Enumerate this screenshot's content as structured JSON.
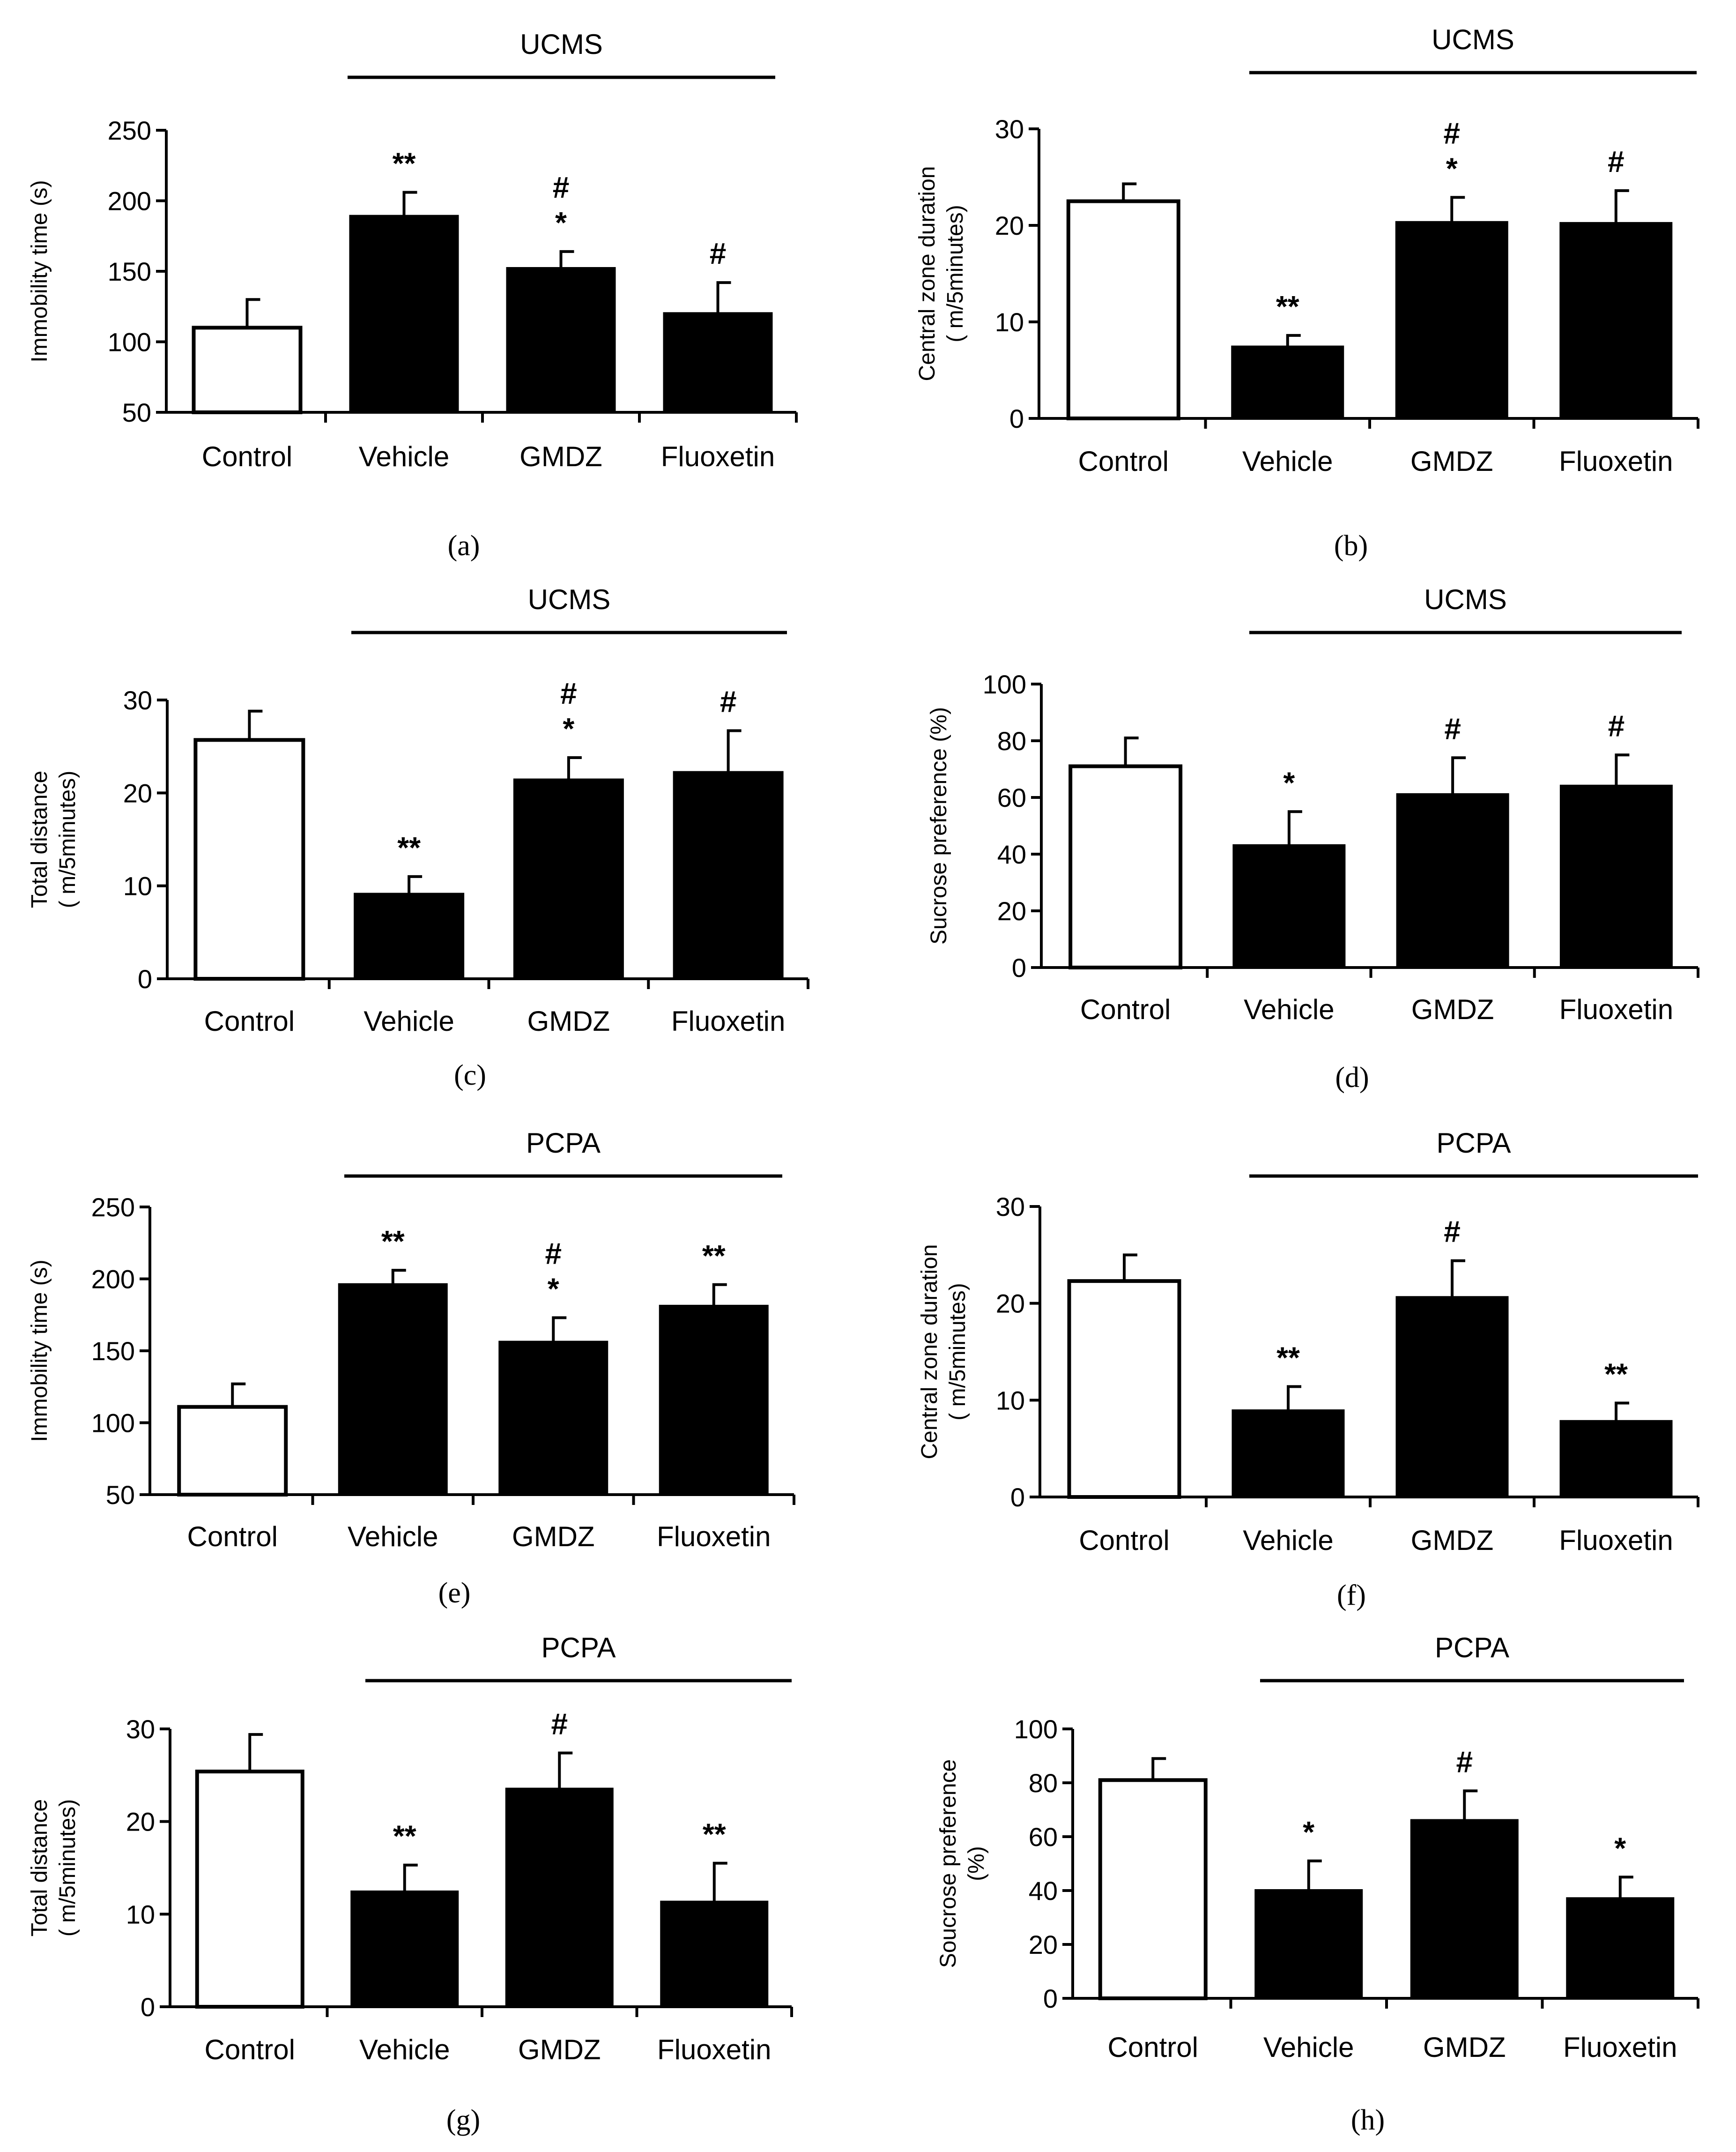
{
  "colors": {
    "treated_bar": "#000000",
    "control_bar": "#ffffff"
  },
  "chart_data": [
    {
      "panel": "(a)",
      "type": "bar",
      "group_label": "UCMS",
      "categories": [
        "Control",
        "Vehicle",
        "GMDZ",
        "Fluoxetin"
      ],
      "ylabel_lines": [
        "Immobility time (s)"
      ],
      "ylim": [
        50,
        250
      ],
      "yticks": [
        50,
        100,
        150,
        200,
        250
      ],
      "values": [
        110,
        189,
        152,
        120
      ],
      "errors": [
        20,
        17,
        12,
        22
      ],
      "annotations": [
        [],
        [
          "**"
        ],
        [
          "#",
          "*"
        ],
        [
          "#"
        ]
      ]
    },
    {
      "panel": "(b)",
      "type": "bar",
      "group_label": "UCMS",
      "categories": [
        "Control",
        "Vehicle",
        "GMDZ",
        "Fluoxetin"
      ],
      "ylabel_lines": [
        "Central zone duration",
        "( m/5minutes)"
      ],
      "ylim": [
        0,
        30
      ],
      "yticks": [
        0,
        10,
        20,
        30
      ],
      "values": [
        22.5,
        7.4,
        20.3,
        20.2
      ],
      "errors": [
        1.8,
        1.2,
        2.6,
        3.4
      ],
      "annotations": [
        [],
        [
          "**"
        ],
        [
          "#",
          "*"
        ],
        [
          "#"
        ]
      ]
    },
    {
      "panel": "(c)",
      "type": "bar",
      "group_label": "UCMS",
      "categories": [
        "Control",
        "Vehicle",
        "GMDZ",
        "Fluoxetin"
      ],
      "ylabel_lines": [
        "Total distance",
        "( m/5minutes)"
      ],
      "ylim": [
        0,
        30
      ],
      "yticks": [
        0,
        10,
        20,
        30
      ],
      "values": [
        25.7,
        9.1,
        21.4,
        22.2
      ],
      "errors": [
        3.1,
        1.9,
        2.4,
        4.5
      ],
      "annotations": [
        [],
        [
          "**"
        ],
        [
          "#",
          "*"
        ],
        [
          "#"
        ]
      ]
    },
    {
      "panel": "(d)",
      "type": "bar",
      "group_label": "UCMS",
      "categories": [
        "Control",
        "Vehicle",
        "GMDZ",
        "Fluoxetin"
      ],
      "ylabel_lines": [
        "Sucrose preference (%)"
      ],
      "ylim": [
        0,
        100
      ],
      "yticks": [
        0,
        20,
        40,
        60,
        80,
        100
      ],
      "values": [
        71,
        43,
        61,
        64
      ],
      "errors": [
        10,
        12,
        13,
        11
      ],
      "annotations": [
        [],
        [
          "*"
        ],
        [
          "#"
        ],
        [
          "#"
        ]
      ]
    },
    {
      "panel": "(e)",
      "type": "bar",
      "group_label": "PCPA",
      "categories": [
        "Control",
        "Vehicle",
        "GMDZ",
        "Fluoxetin"
      ],
      "ylabel_lines": [
        "Immobility time (s)"
      ],
      "ylim": [
        50,
        250
      ],
      "yticks": [
        50,
        100,
        150,
        200,
        250
      ],
      "values": [
        111,
        196,
        156,
        181
      ],
      "errors": [
        16,
        10,
        17,
        15
      ],
      "annotations": [
        [],
        [
          "**"
        ],
        [
          "#",
          "*"
        ],
        [
          "**"
        ]
      ]
    },
    {
      "panel": "(f)",
      "type": "bar",
      "group_label": "PCPA",
      "categories": [
        "Control",
        "Vehicle",
        "GMDZ",
        "Fluoxetin"
      ],
      "ylabel_lines": [
        "Central zone duration",
        "( m/5minutes)"
      ],
      "ylim": [
        0,
        30
      ],
      "yticks": [
        0,
        10,
        20,
        30
      ],
      "values": [
        22.3,
        8.9,
        20.6,
        7.8
      ],
      "errors": [
        2.7,
        2.5,
        3.8,
        1.9
      ],
      "annotations": [
        [],
        [
          "**"
        ],
        [
          "#"
        ],
        [
          "**"
        ]
      ]
    },
    {
      "panel": "(g)",
      "type": "bar",
      "group_label": "PCPA",
      "categories": [
        "Control",
        "Vehicle",
        "GMDZ",
        "Fluoxetin"
      ],
      "ylabel_lines": [
        "Total distance",
        "( m/5minutes)"
      ],
      "ylim": [
        0,
        30
      ],
      "yticks": [
        0,
        10,
        20,
        30
      ],
      "values": [
        25.4,
        12.4,
        23.5,
        11.3
      ],
      "errors": [
        4.0,
        2.9,
        3.9,
        4.2
      ],
      "annotations": [
        [],
        [
          "**"
        ],
        [
          "#"
        ],
        [
          "**"
        ]
      ]
    },
    {
      "panel": "(h)",
      "type": "bar",
      "group_label": "PCPA",
      "categories": [
        "Control",
        "Vehicle",
        "GMDZ",
        "Fluoxetin"
      ],
      "ylabel_lines": [
        "Soucrose preference",
        "(%)"
      ],
      "ylim": [
        0,
        100
      ],
      "yticks": [
        0,
        20,
        40,
        60,
        80,
        100
      ],
      "values": [
        81,
        40,
        66,
        37
      ],
      "errors": [
        8,
        11,
        11,
        8
      ],
      "annotations": [
        [],
        [
          "*"
        ],
        [
          "#"
        ],
        [
          "*"
        ]
      ]
    }
  ]
}
